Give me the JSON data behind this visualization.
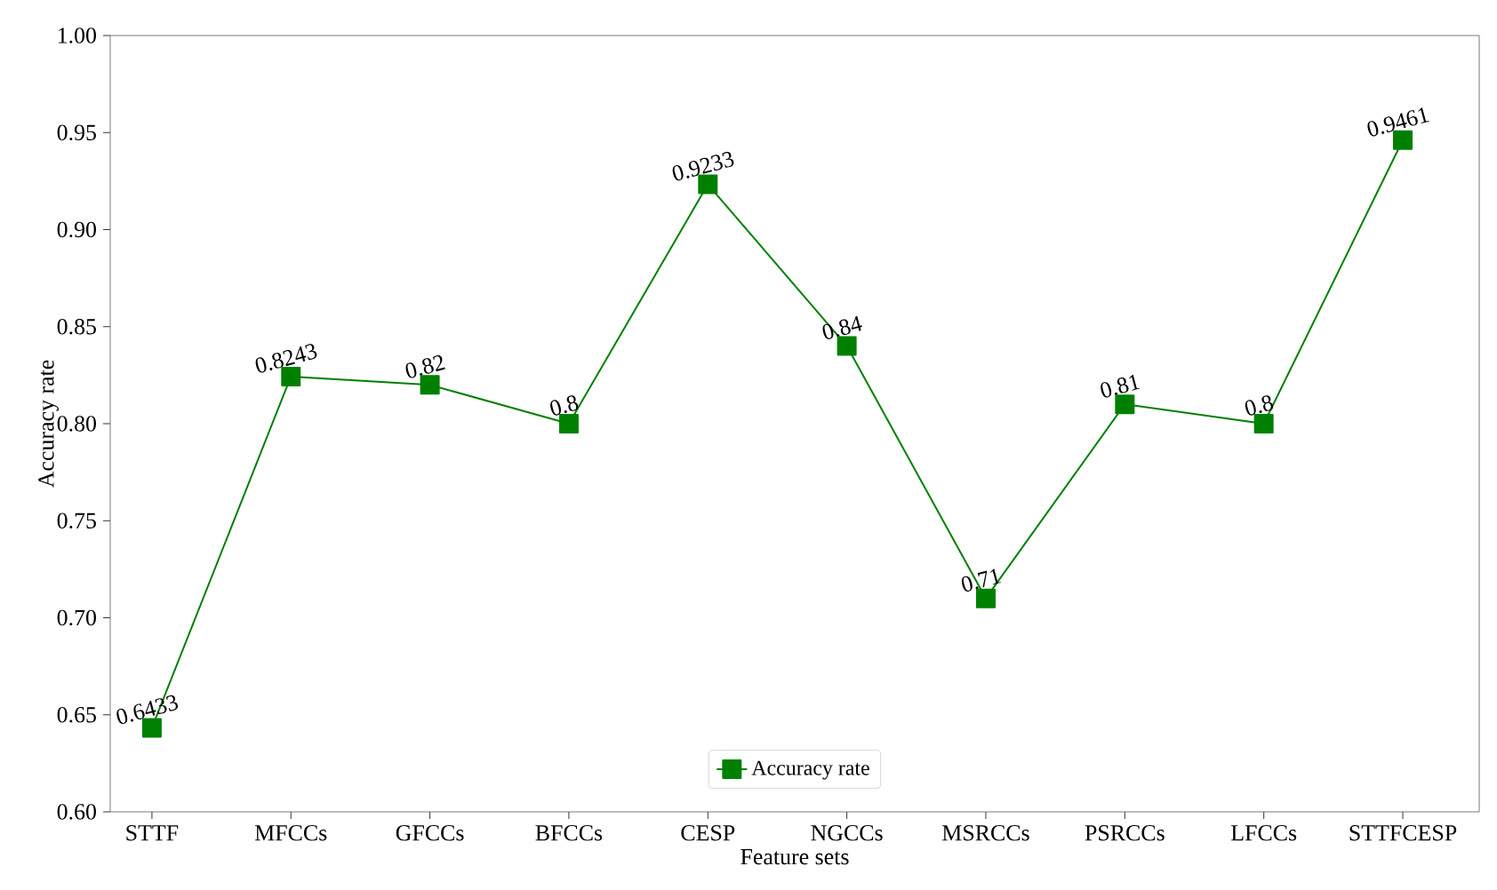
{
  "chart_data": {
    "type": "line",
    "xlabel": "Feature sets",
    "ylabel": "Accuracy rate",
    "categories": [
      "STTF",
      "MFCCs",
      "GFCCs",
      "BFCCs",
      "CESP",
      "NGCCs",
      "MSRCCs",
      "PSRCCs",
      "LFCCs",
      "STTFCESP"
    ],
    "series": [
      {
        "name": "Accuracy rate",
        "color": "#008000",
        "values": [
          0.6433,
          0.8243,
          0.82,
          0.8,
          0.9233,
          0.84,
          0.71,
          0.81,
          0.8,
          0.9461
        ]
      }
    ],
    "ylim": [
      0.6,
      1.0
    ],
    "yticks": [
      {
        "value": 0.6,
        "label": "0.60"
      },
      {
        "value": 0.65,
        "label": "0.65"
      },
      {
        "value": 0.7,
        "label": "0.70"
      },
      {
        "value": 0.75,
        "label": "0.75"
      },
      {
        "value": 0.8,
        "label": "0.80"
      },
      {
        "value": 0.85,
        "label": "0.85"
      },
      {
        "value": 0.9,
        "label": "0.90"
      },
      {
        "value": 0.95,
        "label": "0.95"
      },
      {
        "value": 1.0,
        "label": "1.00"
      }
    ],
    "data_labels": true,
    "marker": "square",
    "line_style": "solid",
    "legend": "bottom",
    "grid": false
  }
}
